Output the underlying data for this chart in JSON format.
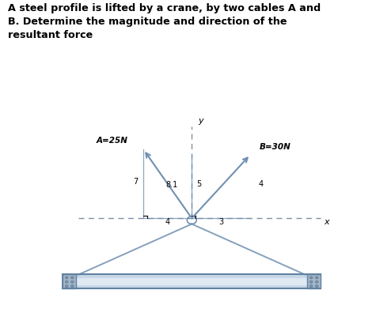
{
  "title_text": "A steel profile is lifted by a crane, by two cables A and\nB. Determine the magnitude and direction of the\nresultant force",
  "label_A": "A=25N",
  "label_B": "B=30N",
  "label_y": "y",
  "label_x": "x",
  "bg_color": "#ffffff",
  "cable_color": "#7090b0",
  "force_color": "#7090b0",
  "dashed_color": "#8090a0",
  "beam_face": "#c8d8e8",
  "beam_edge": "#6080a0",
  "bolt_face": "#9090a0",
  "endplate_face": "#a0b8cc",
  "fig_width": 4.75,
  "fig_height": 4.05,
  "dpi": 100
}
